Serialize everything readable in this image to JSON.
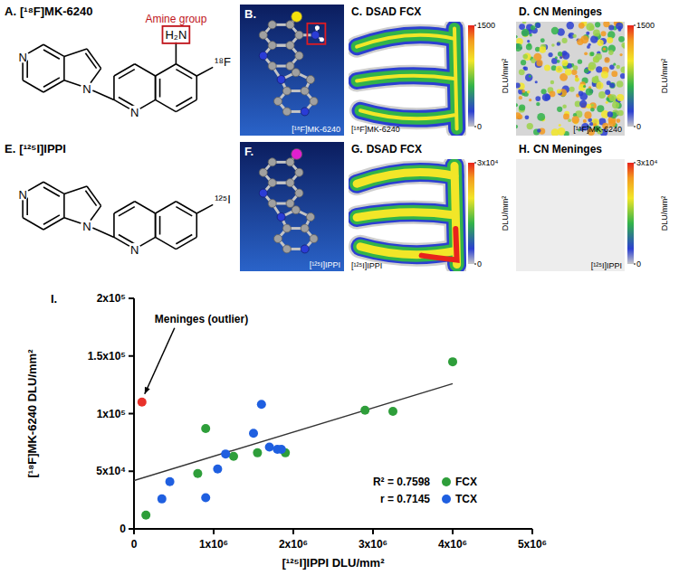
{
  "panels": {
    "A": {
      "letter": "A.",
      "title": "[¹⁸F]MK-6240",
      "amine": "H₂N",
      "amine_label": "Amine group",
      "halogen": "¹⁸F",
      "nitrogens": [
        "N",
        "N",
        "N"
      ]
    },
    "B": {
      "letter": "B.",
      "label": "[¹⁸F]MK-6240"
    },
    "C": {
      "letter": "C.",
      "title": "DSAD FCX",
      "label": "[¹⁸F]MK-6240",
      "colorbar": {
        "range": [
          0,
          1500
        ],
        "ticks": [
          0,
          1500
        ],
        "label": "DLU/mm²"
      }
    },
    "D": {
      "letter": "D.",
      "title": "CN Meninges",
      "label": "[¹⁸F]MK-6240",
      "colorbar": {
        "range": [
          0,
          1500
        ],
        "ticks": [
          0,
          1500
        ],
        "label": "DLU/mm²"
      }
    },
    "E": {
      "letter": "E.",
      "title": "[¹²⁵I]IPPI",
      "halogen": "¹²⁵I",
      "nitrogens": [
        "N",
        "N",
        "N"
      ]
    },
    "F": {
      "letter": "F.",
      "label": "[¹²⁵I]IPPI"
    },
    "G": {
      "letter": "G.",
      "title": "DSAD FCX",
      "label": "[¹²⁵I]IPPI",
      "colorbar": {
        "range": [
          0,
          30000
        ],
        "ticks": [
          0,
          {
            "value": 30000,
            "label": "3x10⁴"
          }
        ],
        "label": "DLU/mm²"
      }
    },
    "H": {
      "letter": "H.",
      "title": "CN Meninges",
      "label": "[¹²⁵I]IPPI",
      "colorbar": {
        "range": [
          0,
          30000
        ],
        "ticks": [
          0,
          {
            "value": 30000,
            "label": "3x10⁴"
          }
        ],
        "label": "DLU/mm²"
      }
    }
  },
  "chart_data": {
    "type": "scatter",
    "panel_letter": "I.",
    "x_label": "[¹²⁵I]IPPI DLU/mm²",
    "y_label": "[¹⁸F]MK-6240 DLU/mm²",
    "xlim": [
      0,
      5000000
    ],
    "xticks": [
      0,
      {
        "value": 1000000,
        "label": "1x10⁶"
      },
      {
        "value": 2000000,
        "label": "2x10⁶"
      },
      {
        "value": 3000000,
        "label": "3x10⁶"
      },
      {
        "value": 4000000,
        "label": "4x10⁶"
      },
      {
        "value": 5000000,
        "label": "5x10⁶"
      }
    ],
    "ylim": [
      0,
      200000
    ],
    "yticks": [
      0,
      {
        "value": 50000,
        "label": "5x10⁴"
      },
      {
        "value": 100000,
        "label": "1x10⁵"
      },
      {
        "value": 150000,
        "label": "1.5x10⁵"
      },
      {
        "value": 200000,
        "label": "2x10⁵"
      }
    ],
    "series": [
      {
        "name": "FCX",
        "color": "#2e9e3a",
        "marker": "circle",
        "x": [
          150000,
          800000,
          900000,
          1250000,
          1550000,
          1900000,
          2900000,
          3250000,
          4000000
        ],
        "values": [
          12000,
          48000,
          87000,
          63000,
          66000,
          66000,
          103000,
          102000,
          145000
        ]
      },
      {
        "name": "TCX",
        "color": "#1f5fe0",
        "marker": "circle",
        "x": [
          350000,
          450000,
          900000,
          1050000,
          1150000,
          1500000,
          1600000,
          1700000,
          1800000,
          1850000
        ],
        "values": [
          26000,
          41000,
          27000,
          52000,
          65000,
          83000,
          108000,
          71000,
          69000,
          69000
        ]
      }
    ],
    "annotations": [
      {
        "text": "Meninges (outlier)",
        "x": 100000,
        "y": 110000,
        "color": "#e8312a"
      }
    ],
    "trend_line": {
      "x": [
        0,
        4000000
      ],
      "values": [
        42000,
        126000
      ]
    },
    "stats": [
      "R² = 0.7598",
      "r = 0.7145"
    ],
    "legend": "bottom right",
    "grid": false
  }
}
